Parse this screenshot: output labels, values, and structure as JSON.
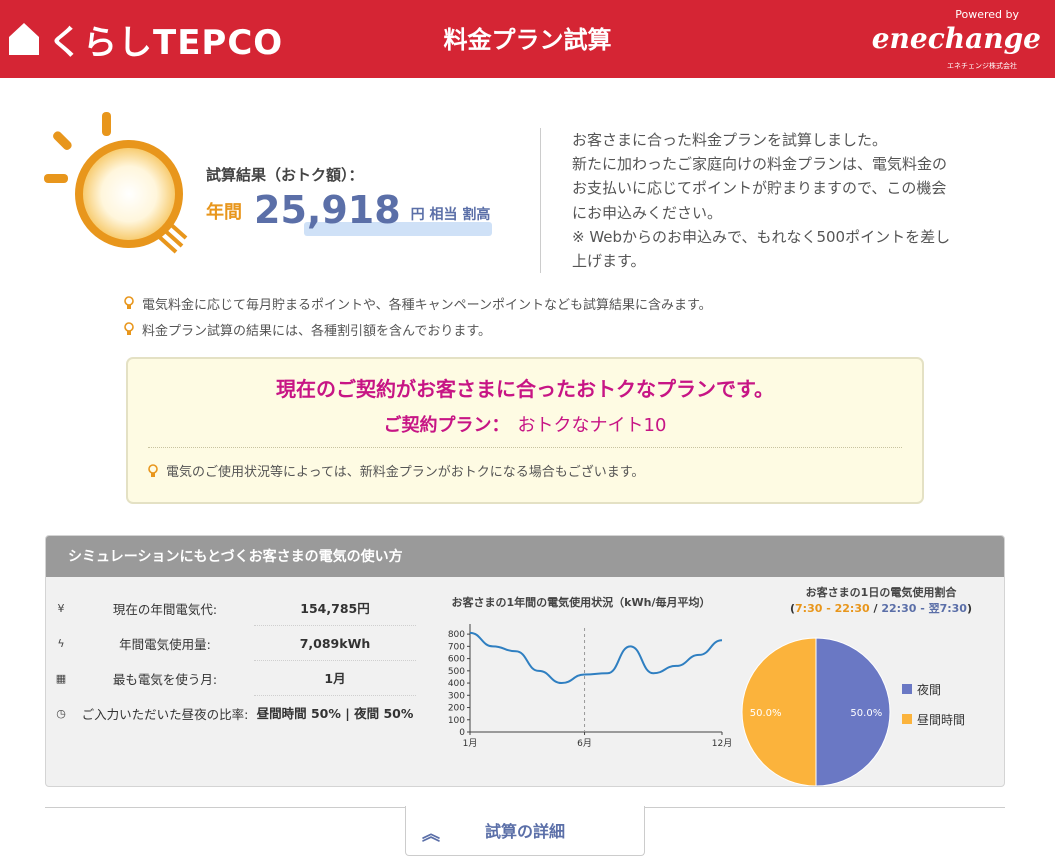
{
  "header": {
    "logo_text": "くらしTEPCO",
    "title": "料金プラン試算",
    "powered_by": "Powered by",
    "partner_logo": "enechange",
    "partner_sub": "エネチェンジ株式会社",
    "bg_color": "#d52534"
  },
  "result": {
    "label": "試算結果（おトク額）：",
    "period": "年間",
    "amount": "25,918",
    "unit": "円 相当 割高"
  },
  "intro": {
    "lines": [
      "お客さまに合った料金プランを試算しました。",
      "新たに加わったご家庭向けの料金プランは、電気料金の",
      "お支払いに応じてポイントが貯まりますので、この機会",
      "にお申込みください。",
      "※ Webからのお申込みで、もれなく500ポイントを差し",
      "上げます。"
    ]
  },
  "notes": [
    "電気料金に応じて毎月貯まるポイントや、各種キャンペーンポイントなども試算結果に含みます。",
    "料金プラン試算の結果には、各種割引額を含んでおります。"
  ],
  "recommend": {
    "headline": "現在のご契約がお客さまに合ったおトクなプランです。",
    "plan_label": "ご契約プラン：",
    "plan_name": "おトクなナイト10",
    "note": "電気のご使用状況等によっては、新料金プランがおトクになる場合もございます。"
  },
  "simulation": {
    "title": "シミュレーションにもとづくお客さまの電気の使い方",
    "stats": [
      {
        "icon": "yen-icon",
        "glyph": "¥",
        "label": "現在の年間電気代:",
        "value": "154,785円"
      },
      {
        "icon": "bolt-icon",
        "glyph": "ϟ",
        "label": "年間電気使用量:",
        "value": "7,089kWh"
      },
      {
        "icon": "calendar-icon",
        "glyph": "▦",
        "label": "最も電気を使う月:",
        "value": "1月"
      },
      {
        "icon": "clock-icon",
        "glyph": "◷",
        "label": "ご入力いただいた昼夜の比率:",
        "value": "昼間時間 50% | 夜間 50%"
      }
    ]
  },
  "chart_data": [
    {
      "type": "line",
      "title": "お客さまの1年間の電気使用状況（kWh/毎月平均）",
      "x": [
        1,
        2,
        3,
        4,
        5,
        6,
        7,
        8,
        9,
        10,
        11,
        12
      ],
      "x_tick_labels": [
        "1月",
        "6月",
        "12月"
      ],
      "x_tick_positions": [
        1,
        6,
        12
      ],
      "series": [
        {
          "values": [
            810,
            700,
            660,
            500,
            400,
            470,
            480,
            700,
            480,
            540,
            630,
            750
          ],
          "color": "#2f7fc1"
        }
      ],
      "ylim": [
        0,
        850
      ],
      "yticks": [
        0,
        100,
        200,
        300,
        400,
        500,
        600,
        700,
        800
      ],
      "marker_line_x": 6
    },
    {
      "type": "pie",
      "title": "お客さまの1日の電気使用割合",
      "subtitle_day": "7:30 - 22:30",
      "subtitle_sep": "/",
      "subtitle_night": "22:30 - 翌7:30",
      "slices": [
        {
          "name": "夜間",
          "value": 50.0,
          "label": "50.0%",
          "color": "#6a78c4"
        },
        {
          "name": "昼間時間",
          "value": 50.0,
          "label": "50.0%",
          "color": "#fbb33c"
        }
      ]
    }
  ],
  "detail_tab": {
    "label": "試算の詳細"
  }
}
